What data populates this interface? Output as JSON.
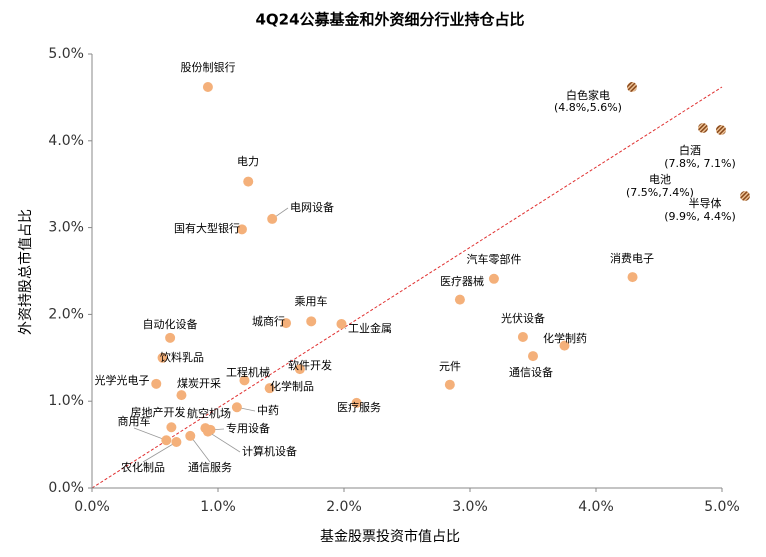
{
  "chart_data": {
    "type": "scatter",
    "title": "4Q24公募基金和外资细分行业持仓占比",
    "xlabel": "基金股票投资市值占比",
    "ylabel": "外资持股总市值占比",
    "xlim": [
      0,
      5
    ],
    "ylim": [
      0,
      5
    ],
    "xticks": [
      {
        "value": 0,
        "label": "0.0%"
      },
      {
        "value": 1,
        "label": "1.0%"
      },
      {
        "value": 2,
        "label": "2.0%"
      },
      {
        "value": 3,
        "label": "3.0%"
      },
      {
        "value": 4,
        "label": "4.0%"
      },
      {
        "value": 5,
        "label": "5.0%"
      }
    ],
    "yticks": [
      {
        "value": 0,
        "label": "0.0%"
      },
      {
        "value": 1,
        "label": "1.0%"
      },
      {
        "value": 2,
        "label": "2.0%"
      },
      {
        "value": 3,
        "label": "3.0%"
      },
      {
        "value": 4,
        "label": "4.0%"
      },
      {
        "value": 5,
        "label": "5.0%"
      }
    ],
    "color": "#f4b07a",
    "points": [
      {
        "name": "股份制银行",
        "x": 0.92,
        "y": 4.62
      },
      {
        "name": "电力",
        "x": 1.24,
        "y": 3.53
      },
      {
        "name": "电网设备",
        "x": 1.43,
        "y": 3.1
      },
      {
        "name": "国有大型银行",
        "x": 1.19,
        "y": 2.98
      },
      {
        "name": "汽车零部件",
        "x": 3.19,
        "y": 2.41
      },
      {
        "name": "医疗器械",
        "x": 2.92,
        "y": 2.17
      },
      {
        "name": "消费电子",
        "x": 4.29,
        "y": 2.43
      },
      {
        "name": "乘用车",
        "x": 1.74,
        "y": 1.92
      },
      {
        "name": "城商行",
        "x": 1.54,
        "y": 1.9
      },
      {
        "name": "工业金属",
        "x": 1.98,
        "y": 1.89
      },
      {
        "name": "自动化设备",
        "x": 0.62,
        "y": 1.73
      },
      {
        "name": "光伏设备",
        "x": 3.42,
        "y": 1.74
      },
      {
        "name": "化学制药",
        "x": 3.75,
        "y": 1.64
      },
      {
        "name": "通信设备",
        "x": 3.5,
        "y": 1.52
      },
      {
        "name": "饮料乳品",
        "x": 0.56,
        "y": 1.5
      },
      {
        "name": "软件开发",
        "x": 1.65,
        "y": 1.37
      },
      {
        "name": "工程机械",
        "x": 1.21,
        "y": 1.24
      },
      {
        "name": "化学制品",
        "x": 1.41,
        "y": 1.15
      },
      {
        "name": "光学光电子",
        "x": 0.51,
        "y": 1.2
      },
      {
        "name": "煤炭开采",
        "x": 0.71,
        "y": 1.07
      },
      {
        "name": "元件",
        "x": 2.84,
        "y": 1.19
      },
      {
        "name": "医疗服务",
        "x": 2.1,
        "y": 0.98
      },
      {
        "name": "中药",
        "x": 1.15,
        "y": 0.93
      },
      {
        "name": "房地产开发",
        "x": 0.63,
        "y": 0.7
      },
      {
        "name": "航空机场",
        "x": 0.9,
        "y": 0.69
      },
      {
        "name": "专用设备",
        "x": 0.94,
        "y": 0.67
      },
      {
        "name": "计算机设备",
        "x": 0.92,
        "y": 0.65
      },
      {
        "name": "商用车",
        "x": 0.59,
        "y": 0.55
      },
      {
        "name": "农化制品",
        "x": 0.67,
        "y": 0.53
      },
      {
        "name": "通信服务",
        "x": 0.78,
        "y": 0.6
      }
    ],
    "outliers": [
      {
        "name": "白色家电",
        "x": 4.8,
        "y": 5.6,
        "value_label": "(4.8%,5.6%)"
      },
      {
        "name": "白酒",
        "x": 7.8,
        "y": 7.1,
        "value_label": "(7.8%, 7.1%)"
      },
      {
        "name": "电池",
        "x": 7.5,
        "y": 7.4,
        "value_label": "(7.5%,7.4%)"
      },
      {
        "name": "半导体",
        "x": 9.9,
        "y": 4.4,
        "value_label": "(9.9%, 4.4%)"
      }
    ]
  }
}
